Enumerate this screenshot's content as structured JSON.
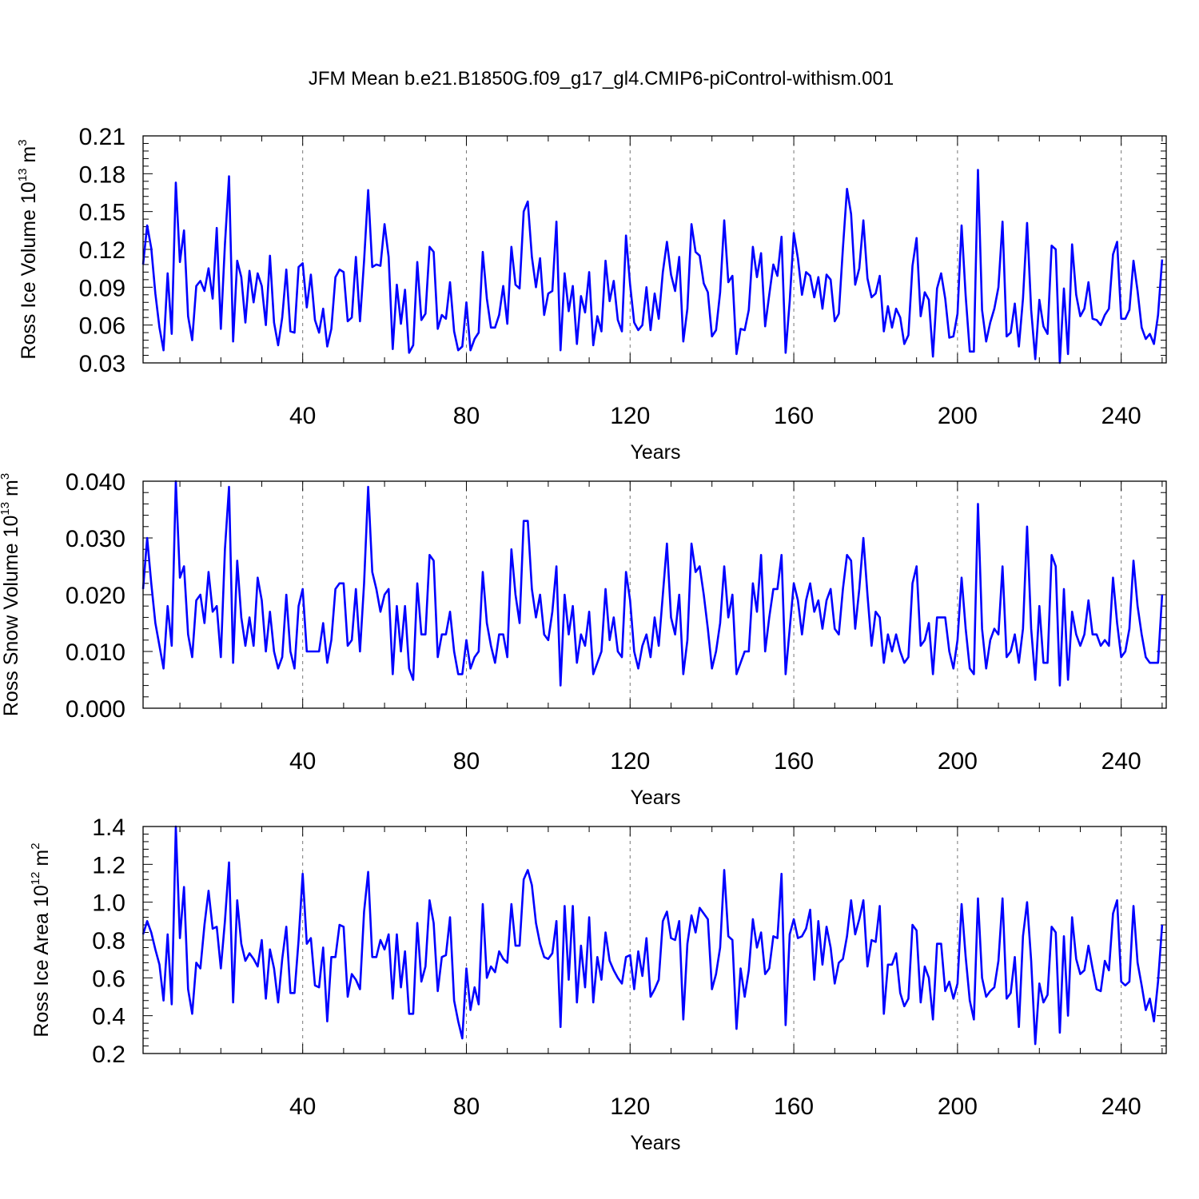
{
  "title": "JFM Mean b.e21.B1850G.f09_g17_gl4.CMIP6-piControl-withism.001",
  "colors": {
    "line": "#0000ff",
    "axis": "#000000",
    "grid": "#777777",
    "background": "#ffffff"
  },
  "chart_data": [
    {
      "type": "line",
      "xlabel": "Years",
      "ylabel": "Ross Ice Volume 10",
      "ylabel_exp": "13",
      "ylabel_unit": " m",
      "ylabel_unit_exp": "3",
      "xlim": [
        1,
        251
      ],
      "ylim": [
        0.03,
        0.21
      ],
      "xticks": [
        40,
        80,
        120,
        160,
        200,
        240
      ],
      "yticks": [
        0.03,
        0.06,
        0.09,
        0.12,
        0.15,
        0.18,
        0.21
      ],
      "yticklabels": [
        "0.03",
        "0.06",
        "0.09",
        "0.12",
        "0.15",
        "0.18",
        "0.21"
      ],
      "grid": "vertical dashed at major x ticks",
      "series": [
        {
          "values": [
            0.108,
            0.139,
            0.121,
            0.085,
            0.058,
            0.04,
            0.101,
            0.053,
            0.173,
            0.11,
            0.135,
            0.067,
            0.048,
            0.091,
            0.095,
            0.087,
            0.105,
            0.081,
            0.137,
            0.057,
            0.124,
            0.178,
            0.047,
            0.111,
            0.098,
            0.062,
            0.103,
            0.078,
            0.101,
            0.091,
            0.06,
            0.115,
            0.062,
            0.044,
            0.066,
            0.104,
            0.055,
            0.054,
            0.106,
            0.109,
            0.074,
            0.1,
            0.064,
            0.054,
            0.073,
            0.043,
            0.057,
            0.098,
            0.104,
            0.102,
            0.063,
            0.066,
            0.114,
            0.063,
            0.111,
            0.167,
            0.106,
            0.108,
            0.107,
            0.14,
            0.114,
            0.041,
            0.092,
            0.061,
            0.088,
            0.038,
            0.044,
            0.11,
            0.064,
            0.069,
            0.122,
            0.118,
            0.057,
            0.068,
            0.065,
            0.094,
            0.055,
            0.04,
            0.043,
            0.078,
            0.04,
            0.049,
            0.054,
            0.118,
            0.081,
            0.058,
            0.058,
            0.068,
            0.091,
            0.061,
            0.122,
            0.092,
            0.089,
            0.15,
            0.158,
            0.114,
            0.09,
            0.113,
            0.068,
            0.085,
            0.087,
            0.142,
            0.04,
            0.101,
            0.071,
            0.091,
            0.045,
            0.083,
            0.07,
            0.102,
            0.044,
            0.067,
            0.055,
            0.111,
            0.079,
            0.095,
            0.064,
            0.055,
            0.131,
            0.092,
            0.062,
            0.056,
            0.06,
            0.09,
            0.056,
            0.085,
            0.065,
            0.102,
            0.126,
            0.1,
            0.087,
            0.114,
            0.047,
            0.073,
            0.14,
            0.118,
            0.115,
            0.093,
            0.086,
            0.051,
            0.056,
            0.086,
            0.143,
            0.094,
            0.099,
            0.037,
            0.057,
            0.056,
            0.072,
            0.122,
            0.098,
            0.117,
            0.059,
            0.084,
            0.108,
            0.099,
            0.13,
            0.038,
            0.079,
            0.133,
            0.113,
            0.084,
            0.102,
            0.099,
            0.082,
            0.098,
            0.073,
            0.1,
            0.096,
            0.063,
            0.069,
            0.121,
            0.168,
            0.148,
            0.092,
            0.105,
            0.143,
            0.097,
            0.082,
            0.085,
            0.099,
            0.055,
            0.075,
            0.058,
            0.073,
            0.066,
            0.045,
            0.052,
            0.107,
            0.129,
            0.067,
            0.086,
            0.08,
            0.035,
            0.089,
            0.101,
            0.081,
            0.05,
            0.051,
            0.069,
            0.139,
            0.083,
            0.039,
            0.039,
            0.183,
            0.072,
            0.047,
            0.062,
            0.073,
            0.09,
            0.142,
            0.051,
            0.054,
            0.077,
            0.043,
            0.081,
            0.141,
            0.072,
            0.033,
            0.08,
            0.059,
            0.053,
            0.123,
            0.12,
            0.03,
            0.089,
            0.037,
            0.124,
            0.084,
            0.067,
            0.073,
            0.094,
            0.065,
            0.064,
            0.06,
            0.068,
            0.073,
            0.116,
            0.126,
            0.065,
            0.065,
            0.072,
            0.111,
            0.087,
            0.058,
            0.049,
            0.053,
            0.045,
            0.068,
            0.112
          ]
        }
      ]
    },
    {
      "type": "line",
      "xlabel": "Years",
      "ylabel": "Ross Snow Volume 10",
      "ylabel_exp": "13",
      "ylabel_unit": " m",
      "ylabel_unit_exp": "3",
      "xlim": [
        1,
        251
      ],
      "ylim": [
        0.0,
        0.04
      ],
      "xticks": [
        40,
        80,
        120,
        160,
        200,
        240
      ],
      "yticks": [
        0.0,
        0.01,
        0.02,
        0.03,
        0.04
      ],
      "yticklabels": [
        "0.000",
        "0.010",
        "0.020",
        "0.030",
        "0.040"
      ],
      "grid": "vertical dashed at major x ticks",
      "series": [
        {
          "values": [
            0.021,
            0.03,
            0.022,
            0.015,
            0.011,
            0.007,
            0.018,
            0.011,
            0.04,
            0.023,
            0.025,
            0.013,
            0.009,
            0.019,
            0.02,
            0.015,
            0.024,
            0.017,
            0.018,
            0.009,
            0.028,
            0.039,
            0.008,
            0.026,
            0.016,
            0.011,
            0.016,
            0.011,
            0.023,
            0.019,
            0.01,
            0.017,
            0.01,
            0.007,
            0.009,
            0.02,
            0.01,
            0.007,
            0.018,
            0.021,
            0.01,
            0.01,
            0.01,
            0.01,
            0.015,
            0.008,
            0.012,
            0.021,
            0.022,
            0.022,
            0.011,
            0.012,
            0.021,
            0.01,
            0.022,
            0.039,
            0.024,
            0.021,
            0.017,
            0.02,
            0.021,
            0.006,
            0.018,
            0.01,
            0.018,
            0.007,
            0.005,
            0.022,
            0.013,
            0.013,
            0.027,
            0.026,
            0.009,
            0.013,
            0.013,
            0.017,
            0.01,
            0.006,
            0.006,
            0.012,
            0.007,
            0.009,
            0.01,
            0.024,
            0.015,
            0.011,
            0.008,
            0.013,
            0.013,
            0.009,
            0.028,
            0.02,
            0.015,
            0.033,
            0.033,
            0.021,
            0.016,
            0.02,
            0.013,
            0.012,
            0.017,
            0.025,
            0.004,
            0.02,
            0.013,
            0.018,
            0.008,
            0.013,
            0.011,
            0.017,
            0.006,
            0.008,
            0.01,
            0.021,
            0.012,
            0.016,
            0.01,
            0.009,
            0.024,
            0.019,
            0.01,
            0.007,
            0.011,
            0.013,
            0.009,
            0.016,
            0.011,
            0.02,
            0.029,
            0.016,
            0.013,
            0.02,
            0.006,
            0.012,
            0.029,
            0.024,
            0.025,
            0.02,
            0.014,
            0.007,
            0.01,
            0.015,
            0.025,
            0.016,
            0.02,
            0.006,
            0.008,
            0.01,
            0.01,
            0.022,
            0.017,
            0.027,
            0.01,
            0.016,
            0.021,
            0.021,
            0.027,
            0.006,
            0.014,
            0.022,
            0.019,
            0.013,
            0.019,
            0.022,
            0.017,
            0.019,
            0.014,
            0.019,
            0.021,
            0.014,
            0.013,
            0.021,
            0.027,
            0.026,
            0.014,
            0.021,
            0.03,
            0.02,
            0.011,
            0.017,
            0.016,
            0.008,
            0.013,
            0.01,
            0.013,
            0.01,
            0.008,
            0.009,
            0.022,
            0.025,
            0.011,
            0.012,
            0.015,
            0.006,
            0.016,
            0.016,
            0.016,
            0.01,
            0.007,
            0.012,
            0.023,
            0.014,
            0.007,
            0.006,
            0.036,
            0.014,
            0.007,
            0.012,
            0.014,
            0.013,
            0.025,
            0.009,
            0.01,
            0.013,
            0.008,
            0.014,
            0.032,
            0.014,
            0.005,
            0.018,
            0.008,
            0.008,
            0.027,
            0.025,
            0.004,
            0.021,
            0.005,
            0.017,
            0.013,
            0.011,
            0.013,
            0.019,
            0.013,
            0.013,
            0.011,
            0.012,
            0.011,
            0.023,
            0.015,
            0.009,
            0.01,
            0.014,
            0.026,
            0.018,
            0.013,
            0.009,
            0.008,
            0.008,
            0.008,
            0.02
          ]
        }
      ]
    },
    {
      "type": "line",
      "xlabel": "Years",
      "ylabel": "Ross Ice Area 10",
      "ylabel_exp": "12",
      "ylabel_unit": " m",
      "ylabel_unit_exp": "2",
      "xlim": [
        1,
        251
      ],
      "ylim": [
        0.2,
        1.4
      ],
      "xticks": [
        40,
        80,
        120,
        160,
        200,
        240
      ],
      "yticks": [
        0.2,
        0.4,
        0.6,
        0.8,
        1.0,
        1.2,
        1.4
      ],
      "yticklabels": [
        "0.2",
        "0.4",
        "0.6",
        "0.8",
        "1.0",
        "1.2",
        "1.4"
      ],
      "grid": "vertical dashed at major x ticks",
      "series": [
        {
          "values": [
            0.83,
            0.9,
            0.84,
            0.75,
            0.67,
            0.48,
            0.83,
            0.46,
            1.4,
            0.81,
            1.08,
            0.54,
            0.41,
            0.68,
            0.65,
            0.88,
            1.06,
            0.86,
            0.87,
            0.65,
            0.9,
            1.21,
            0.47,
            1.01,
            0.78,
            0.69,
            0.73,
            0.7,
            0.66,
            0.8,
            0.49,
            0.75,
            0.65,
            0.47,
            0.7,
            0.87,
            0.52,
            0.52,
            0.8,
            1.15,
            0.78,
            0.81,
            0.56,
            0.55,
            0.76,
            0.37,
            0.71,
            0.71,
            0.88,
            0.87,
            0.5,
            0.62,
            0.59,
            0.54,
            0.95,
            1.16,
            0.71,
            0.71,
            0.8,
            0.75,
            0.83,
            0.49,
            0.83,
            0.55,
            0.74,
            0.41,
            0.41,
            0.89,
            0.58,
            0.66,
            1.01,
            0.89,
            0.53,
            0.71,
            0.72,
            0.92,
            0.48,
            0.37,
            0.28,
            0.65,
            0.43,
            0.55,
            0.46,
            0.99,
            0.6,
            0.66,
            0.63,
            0.74,
            0.7,
            0.68,
            0.99,
            0.77,
            0.77,
            1.12,
            1.17,
            1.09,
            0.89,
            0.78,
            0.71,
            0.7,
            0.73,
            0.9,
            0.34,
            0.98,
            0.59,
            0.98,
            0.47,
            0.77,
            0.55,
            0.92,
            0.47,
            0.71,
            0.59,
            0.84,
            0.69,
            0.64,
            0.6,
            0.57,
            0.71,
            0.72,
            0.54,
            0.74,
            0.61,
            0.81,
            0.5,
            0.54,
            0.59,
            0.9,
            0.95,
            0.81,
            0.8,
            0.9,
            0.38,
            0.78,
            0.93,
            0.84,
            0.97,
            0.94,
            0.91,
            0.54,
            0.62,
            0.76,
            1.17,
            0.82,
            0.8,
            0.33,
            0.65,
            0.5,
            0.64,
            0.91,
            0.76,
            0.84,
            0.62,
            0.65,
            0.82,
            0.81,
            1.15,
            0.35,
            0.83,
            0.91,
            0.81,
            0.82,
            0.86,
            0.96,
            0.59,
            0.9,
            0.67,
            0.87,
            0.76,
            0.57,
            0.68,
            0.7,
            0.82,
            1.01,
            0.83,
            0.91,
            1.01,
            0.66,
            0.8,
            0.79,
            0.98,
            0.41,
            0.67,
            0.67,
            0.73,
            0.52,
            0.45,
            0.49,
            0.88,
            0.85,
            0.47,
            0.66,
            0.6,
            0.38,
            0.78,
            0.78,
            0.53,
            0.58,
            0.49,
            0.57,
            0.99,
            0.71,
            0.48,
            0.38,
            1.02,
            0.6,
            0.5,
            0.53,
            0.55,
            0.69,
            1.02,
            0.49,
            0.52,
            0.71,
            0.34,
            0.82,
            1.0,
            0.69,
            0.25,
            0.57,
            0.47,
            0.51,
            0.87,
            0.84,
            0.31,
            0.82,
            0.4,
            0.92,
            0.7,
            0.62,
            0.64,
            0.77,
            0.65,
            0.54,
            0.53,
            0.69,
            0.64,
            0.94,
            1.01,
            0.58,
            0.56,
            0.58,
            0.98,
            0.68,
            0.56,
            0.43,
            0.49,
            0.37,
            0.58,
            0.88
          ]
        }
      ]
    }
  ]
}
